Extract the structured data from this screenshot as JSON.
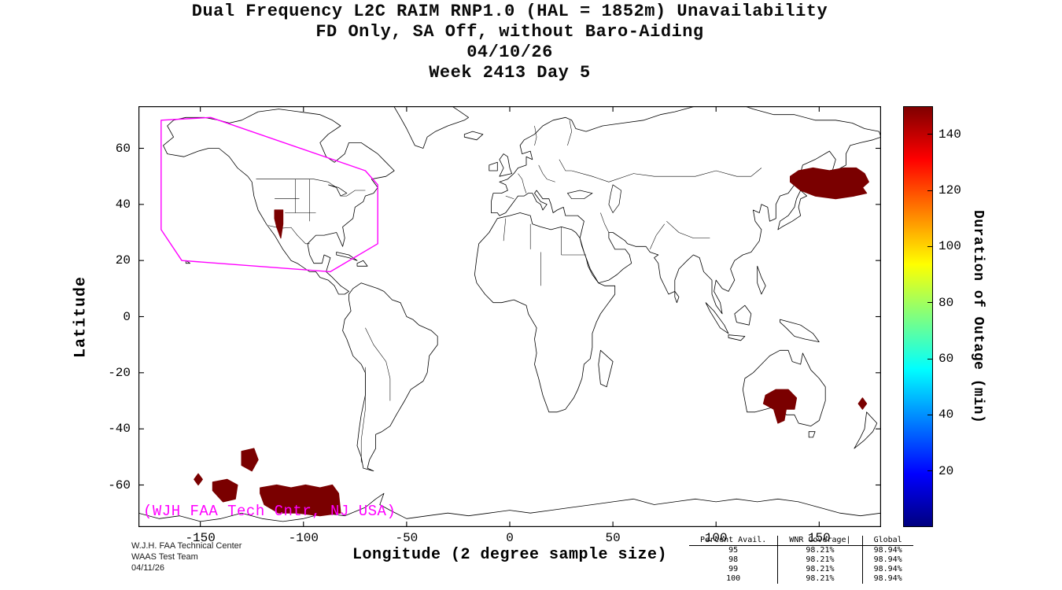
{
  "title": {
    "line1": "Dual Frequency L2C RAIM RNP1.0 (HAL = 1852m) Unavailability",
    "line2": "FD Only, SA Off, without Baro-Aiding",
    "line3": "04/10/26",
    "line4": "Week 2413 Day 5"
  },
  "chart_data": {
    "type": "heatmap",
    "title": "Dual Frequency L2C RAIM RNP1.0 (HAL = 1852m) Unavailability",
    "subtitle": "FD Only, SA Off, without Baro-Aiding",
    "date": "04/10/26",
    "week_day": "Week 2413 Day 5",
    "xlabel": "Longitude (2 degree sample size)",
    "ylabel": "Latitude",
    "xlim": [
      -180,
      180
    ],
    "ylim": [
      -75,
      75
    ],
    "xticks": [
      -150,
      -100,
      -50,
      0,
      50,
      100,
      150
    ],
    "yticks": [
      60,
      40,
      20,
      0,
      -20,
      -40,
      -60
    ],
    "grid": false,
    "colorbar": {
      "label": "Duration of Outage (min)",
      "ticks": [
        20,
        40,
        60,
        80,
        100,
        120,
        140
      ],
      "min": 0,
      "max": 150,
      "colormap": "jet",
      "position": "right"
    },
    "annotation": "(WJH FAA Tech Cntr, NJ USA)",
    "annotation_color": "#ff00ff",
    "waas_boundary_color": "#ff00ff",
    "outage_color": "#7a0000",
    "waas_boundary": [
      [
        -169,
        70
      ],
      [
        -145,
        71
      ],
      [
        -70,
        52
      ],
      [
        -64,
        47
      ],
      [
        -64,
        26
      ],
      [
        -87,
        16
      ],
      [
        -159,
        20
      ],
      [
        -169,
        31
      ]
    ],
    "outage_regions": [
      {
        "name": "sea-of-japan-okhotsk",
        "poly": [
          [
            136,
            50
          ],
          [
            140,
            52
          ],
          [
            147,
            53
          ],
          [
            155,
            52
          ],
          [
            162,
            53
          ],
          [
            168,
            53
          ],
          [
            172,
            51
          ],
          [
            174,
            48
          ],
          [
            171,
            46
          ],
          [
            173,
            44
          ],
          [
            167,
            43
          ],
          [
            158,
            42
          ],
          [
            148,
            43
          ],
          [
            141,
            45
          ],
          [
            136,
            48
          ]
        ]
      },
      {
        "name": "arizona-sonora",
        "poly": [
          [
            -114,
            38
          ],
          [
            -110,
            38
          ],
          [
            -110,
            33
          ],
          [
            -111,
            28
          ],
          [
            -113,
            32
          ],
          [
            -114,
            35
          ]
        ]
      },
      {
        "name": "south-australia",
        "poly": [
          [
            124,
            -28
          ],
          [
            129,
            -26
          ],
          [
            135,
            -26
          ],
          [
            139,
            -29
          ],
          [
            138,
            -33
          ],
          [
            134,
            -33
          ],
          [
            133,
            -37
          ],
          [
            130,
            -38
          ],
          [
            128,
            -33
          ],
          [
            123,
            -31
          ]
        ]
      },
      {
        "name": "norfolk-island",
        "poly": [
          [
            171,
            -29
          ],
          [
            173,
            -31
          ],
          [
            171,
            -33
          ],
          [
            169,
            -31
          ]
        ]
      },
      {
        "name": "south-pacific-small",
        "poly": [
          [
            -151,
            -56
          ],
          [
            -149,
            -58
          ],
          [
            -151,
            -60
          ],
          [
            -153,
            -58
          ]
        ]
      },
      {
        "name": "south-pacific-west",
        "poly": [
          [
            -144,
            -59
          ],
          [
            -137,
            -58
          ],
          [
            -132,
            -60
          ],
          [
            -133,
            -65
          ],
          [
            -139,
            -66
          ],
          [
            -144,
            -62
          ]
        ]
      },
      {
        "name": "south-pacific-north",
        "poly": [
          [
            -130,
            -48
          ],
          [
            -124,
            -47
          ],
          [
            -122,
            -51
          ],
          [
            -125,
            -55
          ],
          [
            -130,
            -53
          ]
        ]
      },
      {
        "name": "south-pacific-large",
        "poly": [
          [
            -121,
            -61
          ],
          [
            -113,
            -60
          ],
          [
            -106,
            -61
          ],
          [
            -99,
            -60
          ],
          [
            -92,
            -61
          ],
          [
            -86,
            -60
          ],
          [
            -83,
            -63
          ],
          [
            -82,
            -70
          ],
          [
            -92,
            -71
          ],
          [
            -103,
            -70
          ],
          [
            -112,
            -70
          ],
          [
            -119,
            -67
          ],
          [
            -121,
            -63
          ]
        ]
      }
    ]
  },
  "footer": {
    "lines": [
      "W.J.H. FAA Technical Center",
      "WAAS Test Team",
      "04/11/26"
    ]
  },
  "stats_table": {
    "headers": [
      "Percent Avail.",
      "WNR Coverage|",
      "Global"
    ],
    "rows": [
      [
        "95",
        "98.21%",
        "98.94%"
      ],
      [
        "98",
        "98.21%",
        "98.94%"
      ],
      [
        "99",
        "98.21%",
        "98.94%"
      ],
      [
        "100",
        "98.21%",
        "98.94%"
      ]
    ]
  }
}
